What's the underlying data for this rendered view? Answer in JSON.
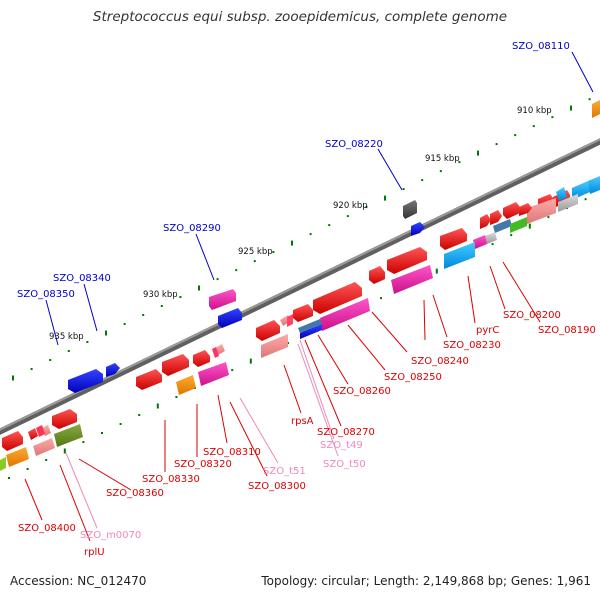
{
  "title": "Streptococcus equi subsp. zooepidemicus, complete genome",
  "footer": {
    "accession": "Accession: NC_012470",
    "summary": "Topology: circular; Length: 2,149,868 bp; Genes: 1,961"
  },
  "ruler": [
    "910 kbp",
    "915 kbp",
    "920 kbp",
    "925 kbp",
    "930 kbp",
    "935 kbp"
  ],
  "labels_top": [
    {
      "text": "SZO_08110",
      "color": "#0000cc"
    },
    {
      "text": "SZO_08220",
      "color": "#0000cc"
    },
    {
      "text": "SZO_08290",
      "color": "#0000cc"
    },
    {
      "text": "SZO_08340",
      "color": "#0000cc"
    },
    {
      "text": "SZO_08350",
      "color": "#0000cc"
    }
  ],
  "labels_bottom": [
    {
      "text": "SZO_08190",
      "color": "#dd0000"
    },
    {
      "text": "SZO_08200",
      "color": "#dd0000"
    },
    {
      "text": "pyrC",
      "color": "#dd0000"
    },
    {
      "text": "SZO_08230",
      "color": "#dd0000"
    },
    {
      "text": "SZO_08240",
      "color": "#dd0000"
    },
    {
      "text": "SZO_08250",
      "color": "#dd0000"
    },
    {
      "text": "SZO_08260",
      "color": "#dd0000"
    },
    {
      "text": "SZO_08270",
      "color": "#dd0000"
    },
    {
      "text": "SZO_t49",
      "color": "#ee88bb"
    },
    {
      "text": "SZO_t50",
      "color": "#ee88bb"
    },
    {
      "text": "rpsA",
      "color": "#dd0000"
    },
    {
      "text": "SZO_t51",
      "color": "#ee88bb"
    },
    {
      "text": "SZO_08300",
      "color": "#dd0000"
    },
    {
      "text": "SZO_08310",
      "color": "#dd0000"
    },
    {
      "text": "SZO_08320",
      "color": "#dd0000"
    },
    {
      "text": "SZO_08330",
      "color": "#dd0000"
    },
    {
      "text": "SZO_08360",
      "color": "#dd0000"
    },
    {
      "text": "SZO_m0070",
      "color": "#ee88bb"
    },
    {
      "text": "rplU",
      "color": "#dd0000"
    },
    {
      "text": "SZO_08400",
      "color": "#dd0000"
    }
  ],
  "colors": {
    "backbone": "#808080",
    "gene_red": "#ee0000",
    "gene_blue": "#0000dd",
    "gene_magenta": "#ee22aa",
    "gene_orange": "#ee8800",
    "gene_pink": "#ee8888",
    "gene_cyan": "#00aaee",
    "gene_olive": "#668822",
    "gene_green": "#44bb22",
    "gene_steel": "#4477aa",
    "gene_grey": "#bbbbbb",
    "tick_green": "#007700"
  }
}
